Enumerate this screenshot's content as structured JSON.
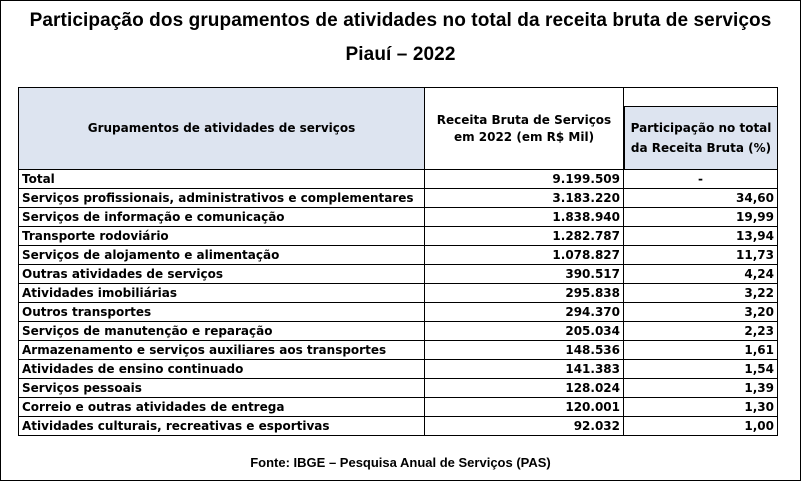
{
  "title_line1": "Participação dos grupamentos de atividades no total da receita bruta de serviços",
  "title_line2": "Piauí – 2022",
  "headers": {
    "group": "Grupamentos de atividades de serviços",
    "revenue": "Receita Bruta de Serviços em 2022 (em R$ Mil)",
    "share": "Participação no total da Receita Bruta (%)"
  },
  "rows": [
    {
      "name": "Total",
      "revenue": "9.199.509",
      "share": "-"
    },
    {
      "name": "Serviços profissionais, administrativos e complementares",
      "revenue": "3.183.220",
      "share": "34,60"
    },
    {
      "name": "Serviços de informação e comunicação",
      "revenue": "1.838.940",
      "share": "19,99"
    },
    {
      "name": "Transporte rodoviário",
      "revenue": "1.282.787",
      "share": "13,94"
    },
    {
      "name": "Serviços de alojamento e alimentação",
      "revenue": "1.078.827",
      "share": "11,73"
    },
    {
      "name": "Outras atividades de serviços",
      "revenue": "390.517",
      "share": "4,24"
    },
    {
      "name": "Atividades imobiliárias",
      "revenue": "295.838",
      "share": "3,22"
    },
    {
      "name": "Outros transportes",
      "revenue": "294.370",
      "share": "3,20"
    },
    {
      "name": "Serviços de manutenção e reparação",
      "revenue": "205.034",
      "share": "2,23"
    },
    {
      "name": "Armazenamento e serviços auxiliares aos transportes",
      "revenue": "148.536",
      "share": "1,61"
    },
    {
      "name": "Atividades de ensino continuado",
      "revenue": "141.383",
      "share": "1,54"
    },
    {
      "name": "Serviços pessoais",
      "revenue": "128.024",
      "share": "1,39"
    },
    {
      "name": "Correio e outras atividades de entrega",
      "revenue": "120.001",
      "share": "1,30"
    },
    {
      "name": "Atividades culturais, recreativas e esportivas",
      "revenue": "92.032",
      "share": "1,00"
    }
  ],
  "source": "Fonte: IBGE – Pesquisa Anual de Serviços (PAS)"
}
